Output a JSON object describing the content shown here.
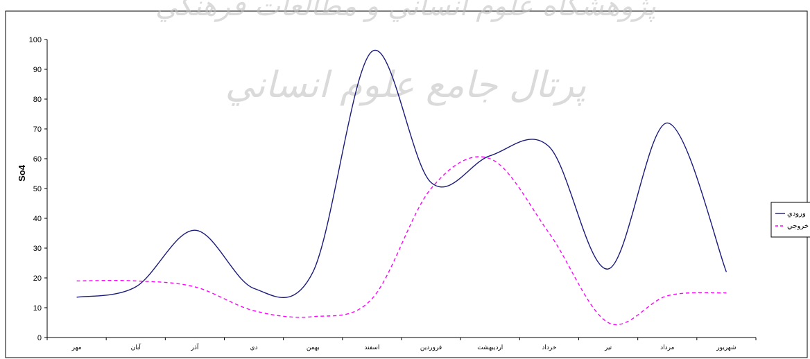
{
  "chart_data": {
    "type": "line",
    "ylabel": "So4",
    "ylim": [
      0,
      100
    ],
    "yticks": [
      0,
      10,
      20,
      30,
      40,
      50,
      60,
      70,
      80,
      90,
      100
    ],
    "categories": [
      "مهر",
      "آبان",
      "آذر",
      "دي",
      "بهمن",
      "اسفند",
      "فروردين",
      "ارديبهشت",
      "خرداد",
      "تير",
      "مرداد",
      "شهريور"
    ],
    "series": [
      {
        "name": "ورودي",
        "color": "#1a1a7a",
        "style": "solid",
        "values": [
          13.5,
          17,
          36,
          16.5,
          22,
          96,
          52,
          61,
          64,
          23,
          72,
          22
        ]
      },
      {
        "name": "خروجي",
        "color": "#ff00ff",
        "style": "dashed",
        "values": [
          19,
          19,
          17,
          9,
          7,
          13,
          50,
          60,
          35,
          5,
          14,
          15
        ]
      }
    ],
    "legend_position": "right",
    "grid": false
  },
  "watermark": {
    "line1": "پژوهشگاه علوم انساني و مطالعات فرهنگي",
    "line2": "پرتال جامع علوم انساني"
  }
}
